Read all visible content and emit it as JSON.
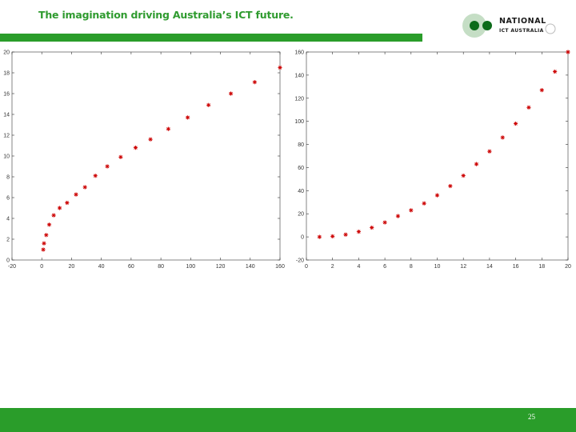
{
  "header": {
    "tagline": "The imagination driving Australia’s ICT future.",
    "logo_line1": "NATIONAL",
    "logo_line2": "ICT AUSTRALIA"
  },
  "footer": {
    "page_number": "25"
  },
  "colors": {
    "green": "#2a9d2a",
    "tagline_green": "#2f9b2f",
    "marker_red": "#cc0000",
    "logo_dark_green": "#0c6b1a",
    "logo_light_green": "#c5dec5",
    "axis": "#333333"
  },
  "chart_data": [
    {
      "type": "scatter",
      "marker": "*",
      "xlim": [
        -20,
        160
      ],
      "ylim": [
        0,
        20
      ],
      "xticks": [
        "-20",
        "0",
        "20",
        "40",
        "60",
        "80",
        "100",
        "120",
        "140",
        "160"
      ],
      "yticks": [
        "0",
        "2",
        "4",
        "6",
        "8",
        "10",
        "12",
        "14",
        "16",
        "18",
        "20"
      ],
      "xlabel": "",
      "ylabel": "",
      "title": "",
      "grid": false,
      "points": [
        [
          1,
          1
        ],
        [
          1.5,
          1.6
        ],
        [
          3,
          2.4
        ],
        [
          5,
          3.4
        ],
        [
          8,
          4.3
        ],
        [
          12,
          5
        ],
        [
          17,
          5.5
        ],
        [
          23,
          6.3
        ],
        [
          29,
          7
        ],
        [
          36,
          8.1
        ],
        [
          44,
          9
        ],
        [
          53,
          9.9
        ],
        [
          63,
          10.8
        ],
        [
          73,
          11.6
        ],
        [
          85,
          12.6
        ],
        [
          98,
          13.7
        ],
        [
          112,
          14.9
        ],
        [
          127,
          16
        ],
        [
          143,
          17.1
        ],
        [
          160,
          18.5
        ]
      ]
    },
    {
      "type": "scatter",
      "marker": "*",
      "xlim": [
        0,
        20
      ],
      "ylim": [
        -20,
        160
      ],
      "xticks": [
        "0",
        "2",
        "4",
        "6",
        "8",
        "10",
        "12",
        "14",
        "16",
        "18",
        "20"
      ],
      "yticks": [
        "-20",
        "0",
        "20",
        "40",
        "60",
        "80",
        "100",
        "120",
        "140",
        "160"
      ],
      "xlabel": "",
      "ylabel": "",
      "title": "",
      "grid": false,
      "points": [
        [
          1,
          0
        ],
        [
          2,
          0.5
        ],
        [
          3,
          2
        ],
        [
          4,
          4.5
        ],
        [
          5,
          8
        ],
        [
          6,
          12.5
        ],
        [
          7,
          18
        ],
        [
          8,
          23
        ],
        [
          9,
          29
        ],
        [
          10,
          36
        ],
        [
          11,
          44
        ],
        [
          12,
          53
        ],
        [
          13,
          63
        ],
        [
          14,
          74
        ],
        [
          15,
          86
        ],
        [
          16,
          98
        ],
        [
          17,
          112
        ],
        [
          18,
          127
        ],
        [
          19,
          143
        ],
        [
          20,
          160
        ]
      ]
    }
  ]
}
